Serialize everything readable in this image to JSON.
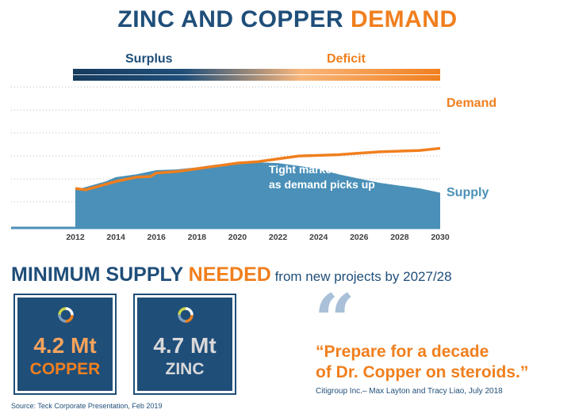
{
  "header": {
    "title_part1": "ZINC AND COPPER ",
    "title_part2": "DEMAND"
  },
  "balance_bar": {
    "surplus_label": "Surplus",
    "deficit_label": "Deficit"
  },
  "chart_data": {
    "type": "area",
    "x_ticks": [
      "2012",
      "2014",
      "2016",
      "2018",
      "2020",
      "2022",
      "2024",
      "2026",
      "2028",
      "2030"
    ],
    "xlim": [
      2012,
      2030
    ],
    "ylim": [
      0,
      100
    ],
    "grid": true,
    "series": [
      {
        "name": "Supply",
        "kind": "area",
        "color": "#4a90b8",
        "points": [
          [
            2012,
            27
          ],
          [
            2013,
            31
          ],
          [
            2013.5,
            33
          ],
          [
            2014,
            36
          ],
          [
            2015,
            38
          ],
          [
            2016,
            41
          ],
          [
            2017,
            41.5
          ],
          [
            2018,
            43
          ],
          [
            2019,
            45
          ],
          [
            2020,
            46
          ],
          [
            2021,
            46.5
          ],
          [
            2022,
            46
          ],
          [
            2023,
            44
          ],
          [
            2024,
            42
          ],
          [
            2025,
            38
          ],
          [
            2026,
            35
          ],
          [
            2027,
            32
          ],
          [
            2028,
            30
          ],
          [
            2029,
            28
          ],
          [
            2030,
            25
          ]
        ]
      },
      {
        "name": "Demand",
        "kind": "line",
        "color": "#f07f1e",
        "points": [
          [
            2012,
            28
          ],
          [
            2012.5,
            27
          ],
          [
            2013,
            29
          ],
          [
            2014,
            33
          ],
          [
            2015,
            36
          ],
          [
            2015.7,
            36.5
          ],
          [
            2016,
            39
          ],
          [
            2017,
            40
          ],
          [
            2018,
            42
          ],
          [
            2019,
            44
          ],
          [
            2020,
            46
          ],
          [
            2021,
            47
          ],
          [
            2022,
            49
          ],
          [
            2023,
            51
          ],
          [
            2024,
            51.5
          ],
          [
            2025,
            52
          ],
          [
            2026,
            53
          ],
          [
            2027,
            54
          ],
          [
            2028,
            54.5
          ],
          [
            2029,
            55
          ],
          [
            2030,
            56.5
          ]
        ]
      }
    ],
    "annotation_line1": "Tight markets near-term",
    "annotation_line2": "as demand picks up",
    "supply_label": "Supply",
    "demand_label": "Demand"
  },
  "section": {
    "title_part1": "MINIMUM SUPPLY ",
    "title_part2": "NEEDED",
    "title_part3": " from new projects by 2027/28"
  },
  "cards": [
    {
      "value": "4.2 Mt",
      "name": "COPPER",
      "value_color": "#f7a35c",
      "name_color": "#f07f1e"
    },
    {
      "value": "4.7 Mt",
      "name": "ZINC",
      "value_color": "#d9d9d9",
      "name_color": "#d9d9d9"
    }
  ],
  "quote": {
    "mark": "“",
    "line1": "“Prepare for a decade",
    "line2": "of Dr. Copper on steroids.”",
    "citation": "Citigroup Inc.– Max Layton and Tracy Liao, July 2018"
  },
  "footer": {
    "source": "Source:  Teck Corporate Presentation, Feb 2019"
  },
  "colors": {
    "navy": "#1f4e79",
    "orange": "#f07f1e",
    "supply_fill": "#4a90b8"
  }
}
